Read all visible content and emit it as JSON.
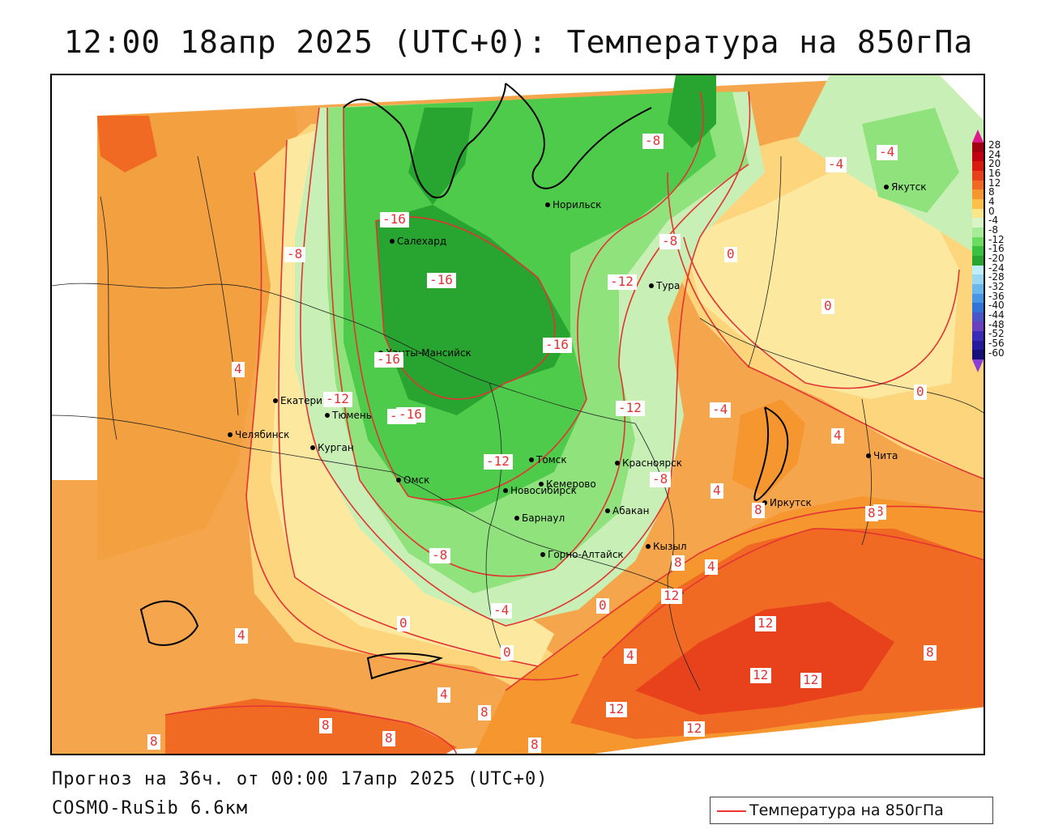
{
  "title": "12:00 18апр 2025 (UTC+0): Температура на 850гПа",
  "forecast": "Прогноз на 36ч. от 00:00 17апр 2025 (UTC+0)",
  "model": "COSMO-RuSib 6.6км",
  "legend": {
    "label": "Температура на 850гПа",
    "line_color": "#e33333"
  },
  "scale": {
    "labels": [
      "28",
      "24",
      "20",
      "16",
      "12",
      "8",
      "4",
      "0",
      "-4",
      "-8",
      "-12",
      "-16",
      "-20",
      "-24",
      "-28",
      "-32",
      "-36",
      "-40",
      "-44",
      "-48",
      "-52",
      "-56",
      "-60"
    ],
    "colors": [
      "#a00010",
      "#c00010",
      "#d81a10",
      "#e8421c",
      "#f06a24",
      "#f5962e",
      "#fbbf4a",
      "#fde58a",
      "#d9f5c8",
      "#a8ec98",
      "#6cdc60",
      "#3cc040",
      "#28a430",
      "#bfeef8",
      "#9ad8f2",
      "#6cb8ec",
      "#4896e4",
      "#3074d8",
      "#4c54c8",
      "#6a40c0",
      "#3a2ab8",
      "#241c9c",
      "#160f7a"
    ]
  },
  "cities": [
    {
      "name": "Салехард"
    },
    {
      "name": "Норильск"
    },
    {
      "name": "Тура"
    },
    {
      "name": "Якутск"
    },
    {
      "name": "Ханты-Мансийск"
    },
    {
      "name": "Екатеринбург"
    },
    {
      "name": "Тюмень"
    },
    {
      "name": "Челябинск"
    },
    {
      "name": "Курган"
    },
    {
      "name": "Омск"
    },
    {
      "name": "Новосибирск"
    },
    {
      "name": "Томск"
    },
    {
      "name": "Кемерово"
    },
    {
      "name": "Красноярск"
    },
    {
      "name": "Барнаул"
    },
    {
      "name": "Абакан"
    },
    {
      "name": "Горно-Алтайск"
    },
    {
      "name": "Кызыл"
    },
    {
      "name": "Иркутск"
    },
    {
      "name": "Чита"
    }
  ],
  "contour_labels": [
    "-16",
    "-8",
    "-16",
    "-16",
    "-16",
    "-16",
    "-12",
    "-12",
    "-12",
    "-8",
    "-8",
    "-8",
    "-8",
    "-4",
    "-4",
    "-4",
    "-4",
    "0",
    "0",
    "0",
    "0",
    "0",
    "0",
    "4",
    "4",
    "4",
    "4",
    "4",
    "4",
    "8",
    "8",
    "8",
    "8",
    "8",
    "8",
    "8",
    "8",
    "12",
    "12",
    "12",
    "12",
    "12",
    "12",
    "-12",
    "-16",
    "8",
    "8",
    "4"
  ]
}
